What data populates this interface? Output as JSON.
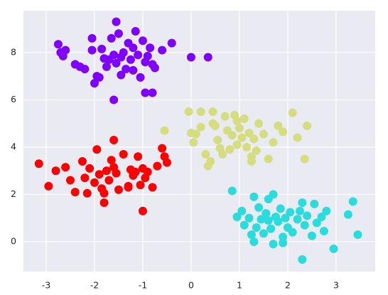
{
  "chart_data": {
    "type": "scatter",
    "xlim": [
      -3.47,
      3.81
    ],
    "ylim": [
      -1.26,
      9.77
    ],
    "xticks": [
      -3,
      -2,
      -1,
      0,
      1,
      2,
      3
    ],
    "yticks": [
      0,
      2,
      4,
      6,
      8
    ],
    "grid": true,
    "series": [
      {
        "color": "#8000ff",
        "x": [
          -1.55,
          -2.75,
          -2.7,
          -2.6,
          -2.65,
          -2.4,
          -2.2,
          -2.05,
          -2.0,
          -1.95,
          -1.85,
          -1.8,
          -1.75,
          -1.7,
          -1.65,
          -1.6,
          -1.55,
          -1.5,
          -1.45,
          -1.4,
          -1.35,
          -1.3,
          -1.25,
          -1.2,
          -1.15,
          -1.1,
          -1.05,
          -1.0,
          -0.95,
          -0.9,
          -0.85,
          -0.8,
          -0.75,
          -0.6,
          -0.4,
          0.0,
          0.35,
          -1.6,
          -0.95,
          -0.8,
          -2.05,
          -2.3,
          -1.9,
          -1.45,
          -1.2
        ],
        "values": [
          9.3,
          8.35,
          8.0,
          8.1,
          7.85,
          7.5,
          7.3,
          8.6,
          6.7,
          7.0,
          8.15,
          7.75,
          7.4,
          7.7,
          8.6,
          7.9,
          7.55,
          8.8,
          7.8,
          8.0,
          7.3,
          8.4,
          7.7,
          7.25,
          8.9,
          7.9,
          6.95,
          8.5,
          7.6,
          7.85,
          8.2,
          7.5,
          7.35,
          8.1,
          8.4,
          7.8,
          7.8,
          6.0,
          6.3,
          6.3,
          8.1,
          7.4,
          6.95,
          7.05,
          8.2
        ]
      },
      {
        "color": "#d4dd80",
        "x": [
          -0.05,
          0.0,
          0.05,
          0.1,
          0.2,
          0.3,
          0.35,
          0.4,
          0.45,
          0.5,
          0.55,
          0.6,
          0.7,
          0.75,
          0.8,
          0.85,
          0.9,
          0.95,
          1.0,
          1.05,
          1.1,
          1.15,
          1.2,
          1.25,
          1.3,
          1.35,
          1.4,
          1.5,
          1.6,
          1.7,
          1.8,
          1.9,
          2.1,
          2.2,
          2.35,
          2.4,
          -0.55,
          0.2,
          0.45,
          0.65,
          0.95,
          1.25
        ],
        "values": [
          5.5,
          4.6,
          4.2,
          4.55,
          5.5,
          3.7,
          3.2,
          3.4,
          5.5,
          4.9,
          4.3,
          3.95,
          5.3,
          4.7,
          3.9,
          4.5,
          5.35,
          4.1,
          4.8,
          4.4,
          5.2,
          4.0,
          4.6,
          3.6,
          4.35,
          3.85,
          5.0,
          4.55,
          3.5,
          4.2,
          4.9,
          4.65,
          5.45,
          4.4,
          3.5,
          4.9,
          4.7,
          4.85,
          5.0,
          3.7,
          5.1,
          3.4
        ]
      },
      {
        "color": "#ff0000",
        "x": [
          -3.15,
          -2.95,
          -2.8,
          -2.6,
          -2.5,
          -2.4,
          -2.25,
          -2.2,
          -2.15,
          -2.1,
          -2.0,
          -1.95,
          -1.9,
          -1.85,
          -1.8,
          -1.75,
          -1.7,
          -1.65,
          -1.6,
          -1.55,
          -1.5,
          -1.4,
          -1.3,
          -1.25,
          -1.2,
          -1.15,
          -1.1,
          -1.05,
          -1.0,
          -0.95,
          -0.9,
          -0.8,
          -0.7,
          -0.6,
          -0.55,
          -0.5,
          -1.8,
          -1.0,
          -1.6,
          -1.3
        ],
        "values": [
          3.3,
          2.35,
          3.0,
          3.15,
          2.6,
          2.1,
          3.4,
          2.7,
          2.05,
          3.1,
          2.5,
          3.9,
          2.85,
          2.25,
          1.65,
          3.0,
          2.6,
          3.45,
          4.3,
          2.9,
          2.2,
          3.7,
          2.35,
          3.05,
          2.8,
          2.95,
          3.6,
          2.4,
          3.1,
          2.7,
          2.95,
          2.3,
          3.2,
          3.95,
          3.6,
          3.35,
          2.05,
          1.3,
          3.15,
          2.3
        ]
      },
      {
        "color": "#2adcdc",
        "x": [
          0.85,
          0.95,
          1.05,
          1.1,
          1.2,
          1.25,
          1.3,
          1.35,
          1.4,
          1.45,
          1.5,
          1.55,
          1.6,
          1.65,
          1.7,
          1.75,
          1.8,
          1.85,
          1.9,
          1.95,
          2.0,
          2.05,
          2.1,
          2.2,
          2.25,
          2.3,
          2.35,
          2.4,
          2.5,
          2.55,
          2.6,
          2.7,
          2.75,
          2.8,
          2.95,
          3.25,
          3.35,
          3.45,
          1.7,
          2.3,
          1.3,
          1.6,
          1.9
        ],
        "values": [
          2.15,
          1.05,
          1.3,
          0.7,
          1.0,
          0.3,
          1.9,
          0.6,
          1.45,
          0.95,
          0.35,
          1.2,
          1.8,
          0.55,
          -0.1,
          1.05,
          0.85,
          1.4,
          0.2,
          1.0,
          0.6,
          1.25,
          0.4,
          0.95,
          1.3,
          -0.75,
          0.7,
          1.1,
          0.25,
          1.6,
          0.8,
          1.05,
          0.45,
          1.3,
          -0.3,
          1.15,
          1.7,
          0.3,
          2.0,
          1.65,
          0.0,
          0.9,
          -0.05
        ]
      }
    ]
  }
}
